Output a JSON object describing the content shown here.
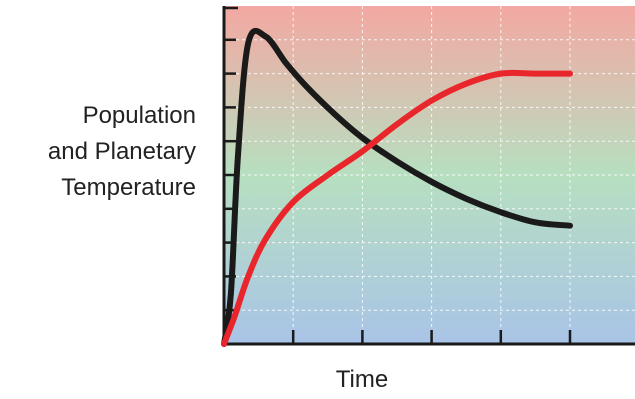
{
  "chart_data": {
    "type": "line",
    "title": "",
    "ylabel_lines": [
      "Population",
      "and Planetary",
      "Temperature"
    ],
    "xlabel": "Time",
    "x_ticks": 5,
    "y_ticks": 9,
    "grid": true,
    "background_gradient": [
      "#F3A8A2",
      "#B7DFC0",
      "#A9C4E7"
    ],
    "series": [
      {
        "color": "#1A1A1A",
        "x": [
          0,
          0.1,
          0.2,
          0.35,
          0.6,
          0.9,
          1.2,
          1.6,
          2.0,
          2.5,
          3.0,
          3.5,
          4.0,
          4.5,
          5.0
        ],
        "y": [
          0.0,
          1.5,
          5.5,
          8.9,
          9.1,
          8.3,
          7.6,
          6.8,
          6.1,
          5.4,
          4.8,
          4.3,
          3.9,
          3.6,
          3.5
        ]
      },
      {
        "color": "#E8262B",
        "x": [
          0,
          0.15,
          0.35,
          0.6,
          1.0,
          1.5,
          2.0,
          2.5,
          3.0,
          3.5,
          4.0,
          4.5,
          5.0
        ],
        "y": [
          0.0,
          0.8,
          2.0,
          3.1,
          4.2,
          5.0,
          5.7,
          6.5,
          7.2,
          7.7,
          8.0,
          8.0,
          8.0
        ]
      }
    ],
    "xlim": [
      0,
      6
    ],
    "ylim": [
      0,
      10
    ]
  }
}
